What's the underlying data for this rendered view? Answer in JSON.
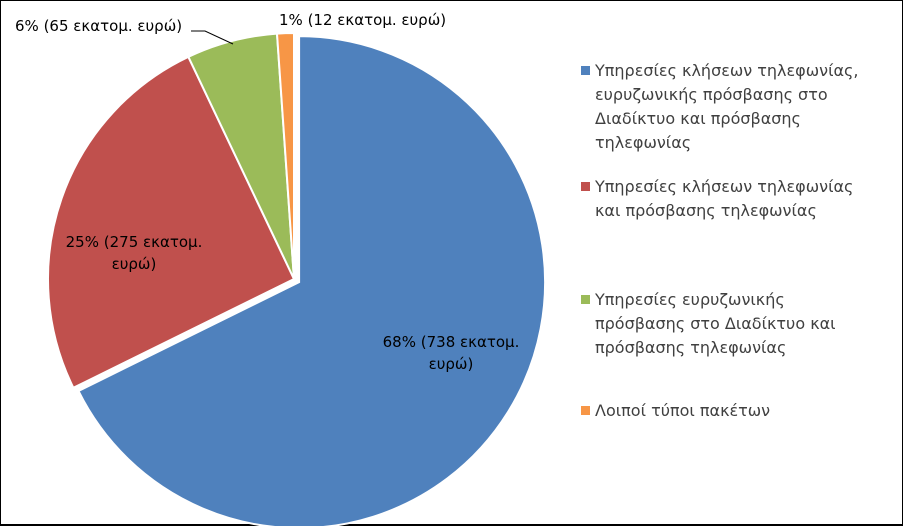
{
  "chart_data": {
    "type": "pie",
    "title": "",
    "categories": [
      "Υπηρεσίες κλήσεων τηλεφωνίας, ευρυζωνικής πρόσβασης στο Διαδίκτυο και πρόσβασης τηλεφωνίας",
      "Υπηρεσίες κλήσεων τηλεφωνίας και πρόσβασης τηλεφωνίας",
      "Υπηρεσίες ευρυζωνικής πρόσβασης στο Διαδίκτυο και πρόσβασης τηλεφωνίας",
      "Λοιποί τύποι πακέτων"
    ],
    "values": [
      738,
      275,
      65,
      12
    ],
    "percents": [
      68,
      25,
      6,
      1
    ],
    "unit": "εκατομ. ευρώ",
    "colors": [
      "#4F81BD",
      "#C0504D",
      "#9BBB59",
      "#F79646"
    ],
    "data_labels": [
      "68% (738 εκατομ. ευρώ)",
      "25% (275 εκατομ. ευρώ)",
      "6% (65 εκατομ. ευρώ)",
      "1% (12 εκατομ. ευρώ)"
    ],
    "legend_position": "right"
  }
}
